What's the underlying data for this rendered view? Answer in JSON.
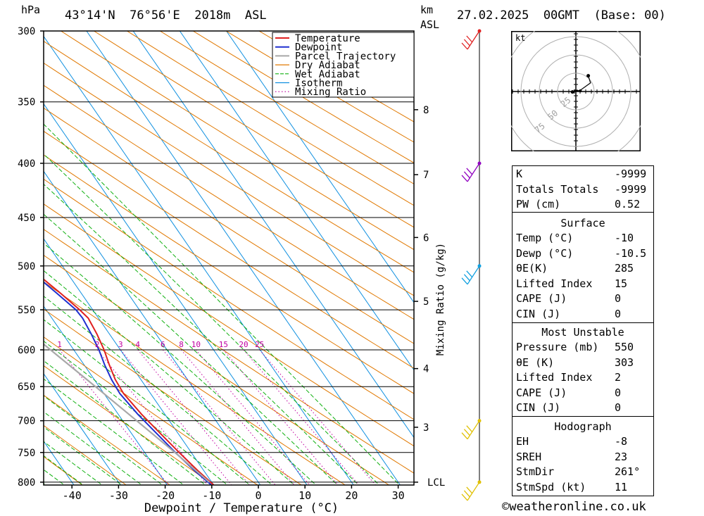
{
  "header": {
    "location": "43°14'N  76°56'E  2018m  ASL",
    "datetime": "27.02.2025  00GMT  (Base: 00)",
    "pressure_unit": "hPa",
    "height_unit": "km",
    "height_unit2": "ASL",
    "kt_label": "kt"
  },
  "chart_data": {
    "type": "line",
    "title": "",
    "xlabel": "Dewpoint / Temperature (°C)",
    "ylabel": "hPa",
    "y2label": "Mixing Ratio (g/kg)",
    "x_ticks": [
      -40,
      -30,
      -20,
      -10,
      0,
      10,
      20,
      30
    ],
    "p_levels": [
      300,
      350,
      400,
      450,
      500,
      550,
      600,
      650,
      700,
      750,
      800
    ],
    "height_km": [
      {
        "km": "8",
        "p": 356
      },
      {
        "km": "7",
        "p": 410
      },
      {
        "km": "6",
        "p": 470
      },
      {
        "km": "5",
        "p": 540
      },
      {
        "km": "4",
        "p": 625
      },
      {
        "km": "3",
        "p": 710
      },
      {
        "km": "LCL",
        "p": 800
      }
    ],
    "mixing_ratio_labels": [
      "1",
      "2",
      "3",
      "4",
      "6",
      "8",
      "10",
      "15",
      "20",
      "25"
    ],
    "legend": [
      "Temperature",
      "Dewpoint",
      "Parcel Trajectory",
      "Dry Adiabat",
      "Wet Adiabat",
      "Isotherm",
      "Mixing Ratio"
    ],
    "legend_colors": [
      "#e02020",
      "#2030d0",
      "#a8a8a8",
      "#e07800",
      "#10b010",
      "#1090e0",
      "#c000a0"
    ],
    "series": [
      {
        "name": "Temperature",
        "color": "#e02020",
        "points": [
          [
            -10,
            805
          ],
          [
            -11.3,
            780
          ],
          [
            -12.6,
            750
          ],
          [
            -13.8,
            720
          ],
          [
            -15,
            690
          ],
          [
            -15.8,
            660
          ],
          [
            -15.5,
            640
          ],
          [
            -14.6,
            620
          ],
          [
            -13.5,
            600
          ],
          [
            -12.7,
            580
          ],
          [
            -12.2,
            560
          ],
          [
            -12.8,
            550
          ],
          [
            -14.5,
            530
          ],
          [
            -16.5,
            510
          ],
          [
            -18.5,
            495
          ],
          [
            -21,
            480
          ],
          [
            -23.5,
            465
          ],
          [
            -25.5,
            450
          ],
          [
            -27.8,
            435
          ],
          [
            -30,
            420
          ],
          [
            -32.5,
            400
          ],
          [
            -35.8,
            380
          ],
          [
            -38.8,
            360
          ],
          [
            -42,
            345
          ],
          [
            -45.3,
            330
          ],
          [
            -48,
            315
          ],
          [
            -50.5,
            300
          ]
        ]
      },
      {
        "name": "Dewpoint",
        "color": "#2030d0",
        "points": [
          [
            -10.5,
            805
          ],
          [
            -12,
            780
          ],
          [
            -13.4,
            750
          ],
          [
            -14.6,
            720
          ],
          [
            -15.8,
            690
          ],
          [
            -16.6,
            660
          ],
          [
            -16.3,
            640
          ],
          [
            -15.6,
            620
          ],
          [
            -14.6,
            600
          ],
          [
            -13.9,
            580
          ],
          [
            -13.4,
            560
          ],
          [
            -13.6,
            550
          ],
          [
            -15.3,
            530
          ],
          [
            -17.2,
            510
          ],
          [
            -19,
            495
          ],
          [
            -21.5,
            480
          ],
          [
            -24,
            465
          ],
          [
            -26,
            450
          ],
          [
            -28.2,
            435
          ],
          [
            -30.4,
            420
          ],
          [
            -33,
            400
          ],
          [
            -36.2,
            380
          ],
          [
            -39.3,
            360
          ],
          [
            -42.5,
            345
          ],
          [
            -45.7,
            330
          ],
          [
            -48.4,
            315
          ],
          [
            -51,
            300
          ]
        ]
      },
      {
        "name": "Parcel Trajectory",
        "color": "#a8a8a8",
        "points": [
          [
            -10.5,
            800
          ],
          [
            -13.5,
            750
          ],
          [
            -17,
            700
          ],
          [
            -20.8,
            650
          ],
          [
            -25,
            600
          ],
          [
            -29.5,
            550
          ],
          [
            -34.5,
            500
          ],
          [
            -40,
            450
          ],
          [
            -46,
            400
          ],
          [
            -52.5,
            350
          ],
          [
            -59.5,
            300
          ]
        ]
      }
    ],
    "ylim": [
      300,
      805
    ],
    "xlim": [
      -46,
      34
    ],
    "hodograph": {
      "rings": [
        "25",
        "50",
        "75"
      ],
      "points_kt": [
        [
          -1.5,
          -0.2
        ],
        [
          -0.8,
          0.2
        ],
        [
          0.8,
          0.3
        ],
        [
          2.0,
          0.6
        ],
        [
          6.5,
          3.8
        ],
        [
          5.5,
          7.0
        ]
      ]
    },
    "wind_barbs": [
      {
        "p": 300,
        "color": "#e02020",
        "dot": "#e02020"
      },
      {
        "p": 400,
        "color": "#9000c0",
        "dot": "#9000c0"
      },
      {
        "p": 500,
        "color": "#10a0e0",
        "dot": "#10a0e0"
      },
      {
        "p": 700,
        "color": "#e0c000",
        "dot": "#e0c000"
      },
      {
        "p": 800,
        "color": "#e0c000",
        "dot": "#e0c000"
      }
    ]
  },
  "indices": {
    "rows": [
      {
        "k": "K",
        "v": "-9999"
      },
      {
        "k": "Totals Totals",
        "v": "-9999"
      },
      {
        "k": "PW (cm)",
        "v": "0.52"
      }
    ],
    "surface": {
      "title": "Surface",
      "rows": [
        {
          "k": "Temp (°C)",
          "v": "-10"
        },
        {
          "k": "Dewp (°C)",
          "v": "-10.5"
        },
        {
          "k": "θE(K)",
          "v": "285"
        },
        {
          "k": "Lifted Index",
          "v": "15"
        },
        {
          "k": "CAPE (J)",
          "v": "0"
        },
        {
          "k": "CIN (J)",
          "v": "0"
        }
      ]
    },
    "most_unstable": {
      "title": "Most Unstable",
      "rows": [
        {
          "k": "Pressure (mb)",
          "v": "550"
        },
        {
          "k": "θE (K)",
          "v": "303"
        },
        {
          "k": "Lifted Index",
          "v": "2"
        },
        {
          "k": "CAPE (J)",
          "v": "0"
        },
        {
          "k": "CIN (J)",
          "v": "0"
        }
      ]
    },
    "hodograph": {
      "title": "Hodograph",
      "rows": [
        {
          "k": "EH",
          "v": "-8"
        },
        {
          "k": "SREH",
          "v": "23"
        },
        {
          "k": "StmDir",
          "v": "261°"
        },
        {
          "k": "StmSpd (kt)",
          "v": "11"
        }
      ]
    }
  },
  "footer": {
    "copyright_symbol": "©",
    "site": "weatheronline.co.uk"
  }
}
